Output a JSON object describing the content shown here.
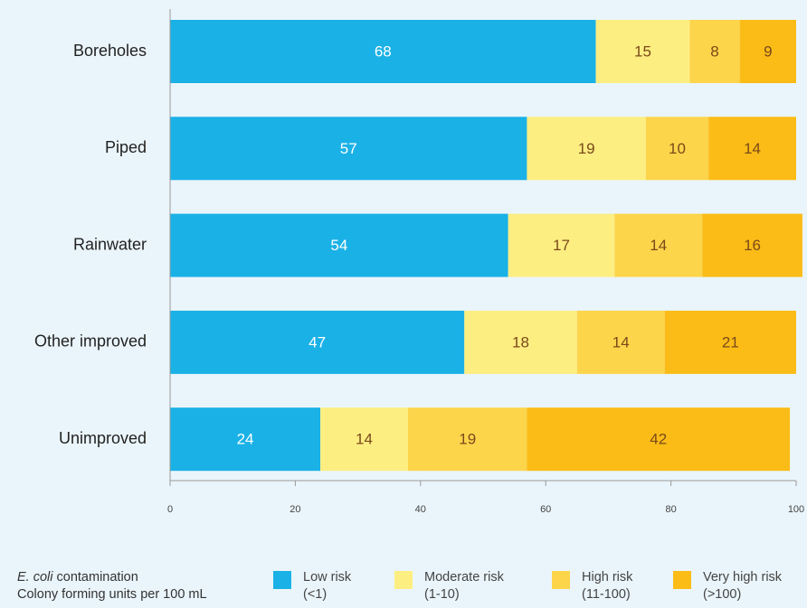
{
  "chart_data": {
    "type": "bar",
    "orientation": "horizontal",
    "stacked": true,
    "categories": [
      "Boreholes",
      "Piped",
      "Rainwater",
      "Other improved",
      "Unimproved"
    ],
    "series": [
      {
        "name": "Low risk",
        "sublabel": "(<1)",
        "color": "#1ab1e6",
        "label_color": "#ffffff",
        "values": [
          68,
          57,
          54,
          47,
          24
        ]
      },
      {
        "name": "Moderate risk",
        "sublabel": "(1-10)",
        "color": "#fdee82",
        "label_color": "#7a4a1a",
        "values": [
          15,
          19,
          17,
          18,
          14
        ]
      },
      {
        "name": "High risk",
        "sublabel": "(11-100)",
        "color": "#fdd54b",
        "label_color": "#7a4a1a",
        "values": [
          8,
          10,
          14,
          14,
          19
        ]
      },
      {
        "name": "Very high risk",
        "sublabel": "(>100)",
        "color": "#fbbc17",
        "label_color": "#7a4a1a",
        "values": [
          9,
          14,
          16,
          21,
          42
        ]
      }
    ],
    "xlim": [
      0,
      100
    ],
    "xticks": [
      0,
      20,
      40,
      60,
      80,
      100
    ],
    "grid": false,
    "legend_position": "bottom"
  },
  "legend": {
    "title_italic": "E. coli",
    "title_rest": " contamination",
    "subtitle": "Colony forming units per 100 mL"
  }
}
